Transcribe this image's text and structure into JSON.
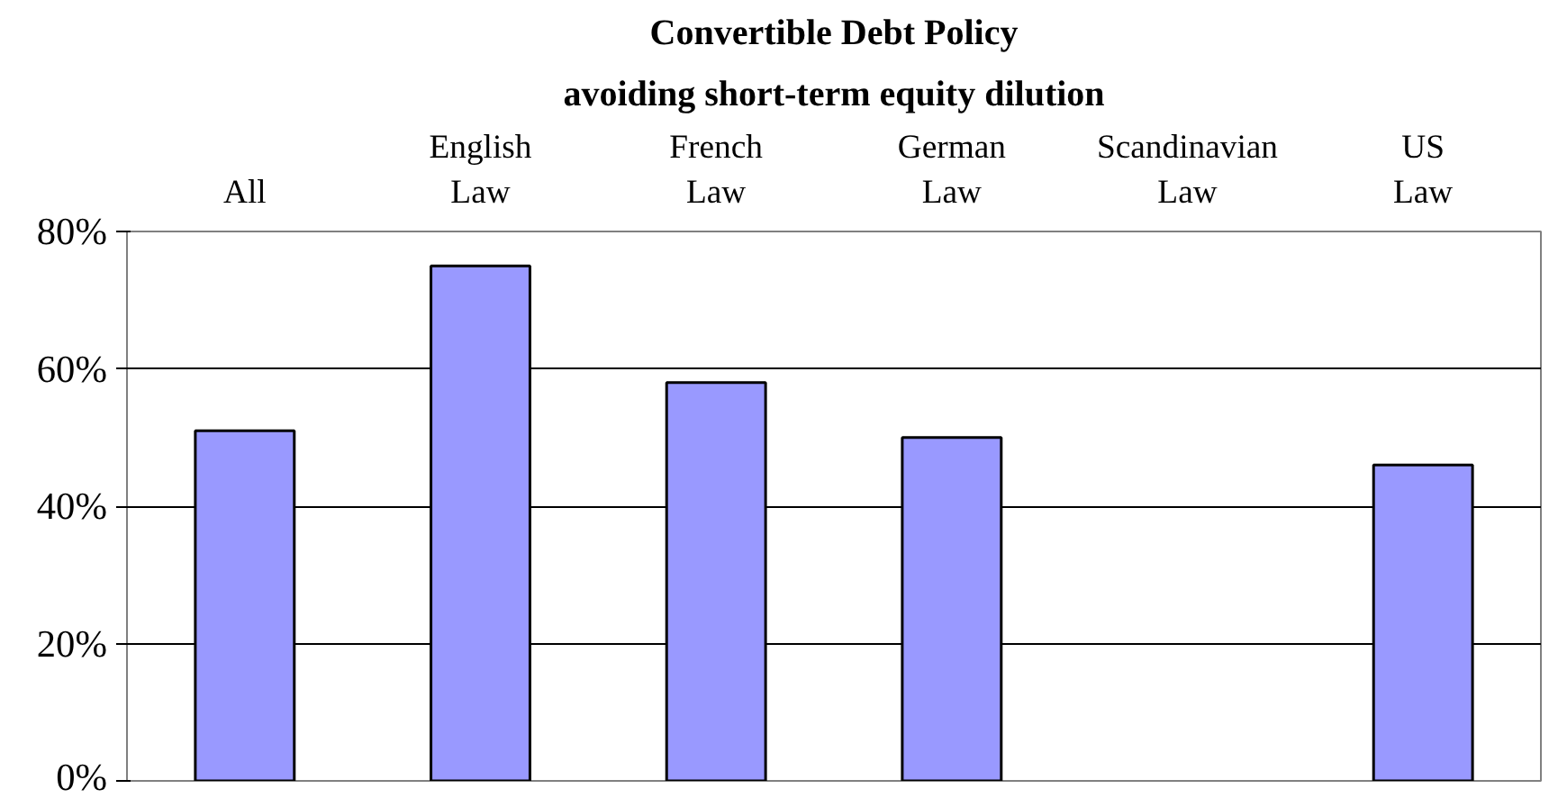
{
  "chart_data": {
    "type": "bar",
    "title": "Convertible Debt Policy",
    "subtitle": "avoiding short-term equity dilution",
    "categories": [
      "All",
      "English Law",
      "French Law",
      "German Law",
      "Scandinavian Law",
      "US Law"
    ],
    "values": [
      51,
      75,
      58,
      50,
      null,
      46
    ],
    "color": "#9999ff",
    "ylim": [
      0,
      80
    ],
    "yticks": [
      {
        "value": 0,
        "label": "0%"
      },
      {
        "value": 20,
        "label": "20%"
      },
      {
        "value": 40,
        "label": "40%"
      },
      {
        "value": 60,
        "label": "60%"
      },
      {
        "value": 80,
        "label": "80%"
      }
    ],
    "grid": "y"
  }
}
